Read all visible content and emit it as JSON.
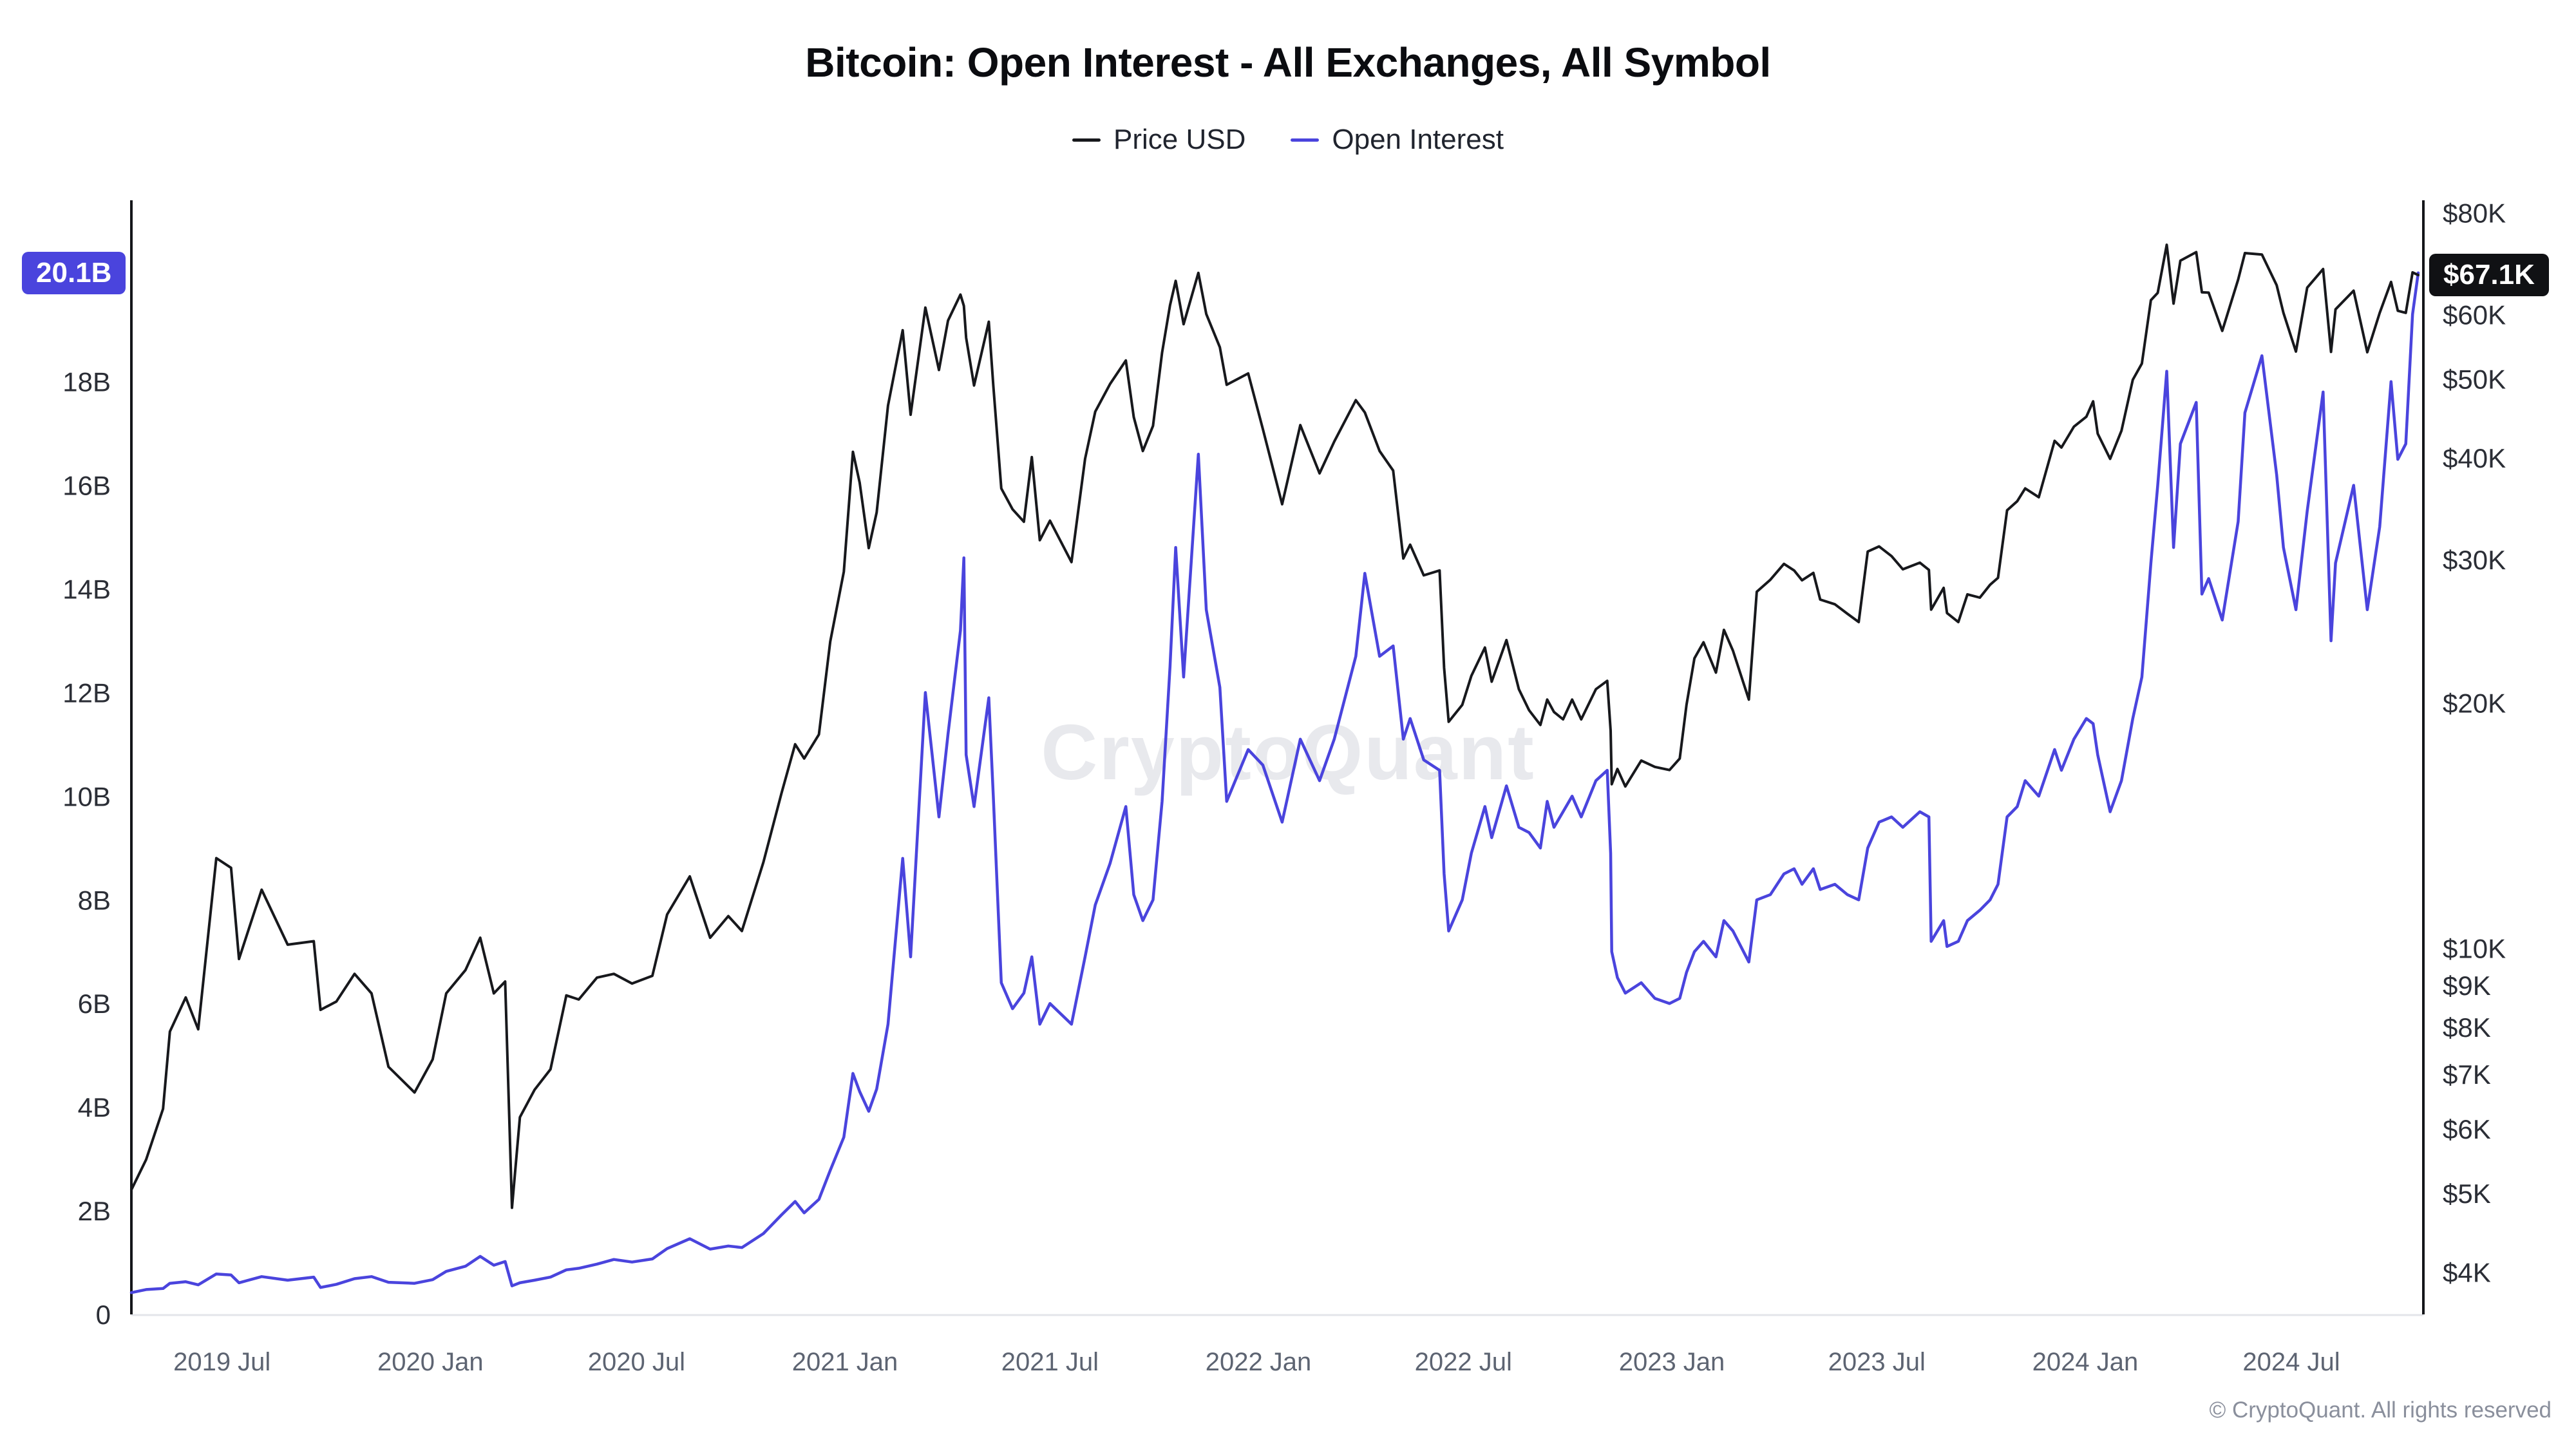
{
  "footer": {
    "copyright": "© CryptoQuant. All rights reserved"
  },
  "chart_data": {
    "type": "line",
    "x_type": "time",
    "title": "Bitcoin: Open Interest - All Exchanges, All Symbol",
    "watermark": "CryptoQuant",
    "legend_position": "top",
    "x_range": [
      "2019-04-12",
      "2024-10-21"
    ],
    "series": [
      {
        "name": "Price USD",
        "axis": "right",
        "color": "#17181c",
        "unit": "USD",
        "value_index": 1,
        "current": 67100,
        "current_label": "$67.1K"
      },
      {
        "name": "Open Interest",
        "axis": "left",
        "color": "#4a44dd",
        "unit": "billion USD",
        "value_index": 2,
        "current": 20.1,
        "current_label": "20.1B"
      }
    ],
    "left_axis": {
      "scale": "linear",
      "min": 0,
      "max": 21.5,
      "ticks": [
        0,
        2,
        4,
        6,
        8,
        10,
        12,
        14,
        16,
        18
      ],
      "tick_labels": [
        "0",
        "2B",
        "4B",
        "6B",
        "8B",
        "10B",
        "12B",
        "14B",
        "16B",
        "18B"
      ],
      "current_label": "20.1B"
    },
    "right_axis": {
      "scale": "log",
      "min": 3550,
      "max": 82900,
      "ticks": [
        4000,
        5000,
        6000,
        7000,
        8000,
        9000,
        10000,
        20000,
        30000,
        40000,
        50000,
        60000,
        80000
      ],
      "tick_labels": [
        "$4K",
        "$5K",
        "$6K",
        "$7K",
        "$8K",
        "$9K",
        "$10K",
        "$20K",
        "$30K",
        "$40K",
        "$50K",
        "$60K",
        "$80K"
      ],
      "current_label": "$67.1K"
    },
    "x_ticks": [
      {
        "date": "2019-07-01",
        "label": "2019 Jul"
      },
      {
        "date": "2020-01-01",
        "label": "2020 Jan"
      },
      {
        "date": "2020-07-01",
        "label": "2020 Jul"
      },
      {
        "date": "2021-01-01",
        "label": "2021 Jan"
      },
      {
        "date": "2021-07-01",
        "label": "2021 Jul"
      },
      {
        "date": "2022-01-01",
        "label": "2022 Jan"
      },
      {
        "date": "2022-07-01",
        "label": "2022 Jul"
      },
      {
        "date": "2023-01-01",
        "label": "2023 Jan"
      },
      {
        "date": "2023-07-01",
        "label": "2023 Jul"
      },
      {
        "date": "2024-01-01",
        "label": "2024 Jan"
      },
      {
        "date": "2024-07-01",
        "label": "2024 Jul"
      }
    ],
    "points": [
      [
        "2019-04-12",
        5050,
        0.42
      ],
      [
        "2019-04-25",
        5500,
        0.48
      ],
      [
        "2019-05-10",
        6350,
        0.5
      ],
      [
        "2019-05-16",
        7900,
        0.6
      ],
      [
        "2019-05-30",
        8700,
        0.63
      ],
      [
        "2019-06-10",
        7950,
        0.57
      ],
      [
        "2019-06-26",
        12900,
        0.78
      ],
      [
        "2019-07-09",
        12550,
        0.76
      ],
      [
        "2019-07-16",
        9700,
        0.61
      ],
      [
        "2019-08-05",
        11800,
        0.73
      ],
      [
        "2019-08-28",
        10100,
        0.66
      ],
      [
        "2019-09-20",
        10200,
        0.72
      ],
      [
        "2019-09-26",
        8400,
        0.52
      ],
      [
        "2019-10-10",
        8600,
        0.58
      ],
      [
        "2019-10-26",
        9300,
        0.69
      ],
      [
        "2019-11-10",
        8800,
        0.73
      ],
      [
        "2019-11-25",
        7150,
        0.62
      ],
      [
        "2019-12-18",
        6650,
        0.6
      ],
      [
        "2020-01-03",
        7300,
        0.67
      ],
      [
        "2020-01-15",
        8800,
        0.83
      ],
      [
        "2020-02-01",
        9400,
        0.93
      ],
      [
        "2020-02-14",
        10300,
        1.12
      ],
      [
        "2020-02-26",
        8800,
        0.95
      ],
      [
        "2020-03-07",
        9100,
        1.02
      ],
      [
        "2020-03-13",
        4800,
        0.55
      ],
      [
        "2020-03-20",
        6200,
        0.61
      ],
      [
        "2020-04-02",
        6700,
        0.66
      ],
      [
        "2020-04-16",
        7100,
        0.72
      ],
      [
        "2020-04-30",
        8750,
        0.86
      ],
      [
        "2020-05-11",
        8650,
        0.89
      ],
      [
        "2020-05-27",
        9200,
        0.97
      ],
      [
        "2020-06-11",
        9300,
        1.06
      ],
      [
        "2020-06-27",
        9050,
        1.01
      ],
      [
        "2020-07-15",
        9250,
        1.07
      ],
      [
        "2020-07-28",
        11000,
        1.27
      ],
      [
        "2020-08-17",
        12250,
        1.46
      ],
      [
        "2020-09-04",
        10300,
        1.26
      ],
      [
        "2020-09-20",
        10950,
        1.32
      ],
      [
        "2020-10-02",
        10500,
        1.29
      ],
      [
        "2020-10-21",
        12750,
        1.56
      ],
      [
        "2020-11-06",
        15500,
        1.92
      ],
      [
        "2020-11-18",
        17800,
        2.18
      ],
      [
        "2020-11-26",
        17100,
        1.96
      ],
      [
        "2020-12-09",
        18300,
        2.22
      ],
      [
        "2020-12-19",
        23800,
        2.78
      ],
      [
        "2020-12-31",
        29000,
        3.42
      ],
      [
        "2021-01-08",
        40700,
        4.65
      ],
      [
        "2021-01-14",
        37300,
        4.3
      ],
      [
        "2021-01-22",
        31000,
        3.92
      ],
      [
        "2021-01-29",
        34300,
        4.35
      ],
      [
        "2021-02-08",
        46400,
        5.6
      ],
      [
        "2021-02-21",
        57400,
        8.8
      ],
      [
        "2021-02-28",
        45200,
        6.9
      ],
      [
        "2021-03-13",
        61200,
        12.0
      ],
      [
        "2021-03-25",
        51300,
        9.6
      ],
      [
        "2021-04-02",
        59000,
        11.2
      ],
      [
        "2021-04-13",
        63500,
        13.2
      ],
      [
        "2021-04-16",
        61500,
        14.6
      ],
      [
        "2021-04-18",
        56200,
        10.8
      ],
      [
        "2021-04-25",
        49100,
        9.8
      ],
      [
        "2021-05-08",
        58800,
        11.9
      ],
      [
        "2021-05-12",
        49100,
        10.0
      ],
      [
        "2021-05-19",
        36700,
        6.4
      ],
      [
        "2021-05-29",
        34600,
        5.9
      ],
      [
        "2021-06-08",
        33400,
        6.2
      ],
      [
        "2021-06-15",
        40100,
        6.9
      ],
      [
        "2021-06-22",
        31700,
        5.6
      ],
      [
        "2021-07-01",
        33500,
        6.0
      ],
      [
        "2021-07-20",
        29800,
        5.6
      ],
      [
        "2021-08-01",
        39900,
        6.9
      ],
      [
        "2021-08-10",
        45600,
        7.9
      ],
      [
        "2021-08-23",
        49300,
        8.7
      ],
      [
        "2021-09-06",
        52700,
        9.8
      ],
      [
        "2021-09-13",
        44900,
        8.1
      ],
      [
        "2021-09-21",
        40800,
        7.6
      ],
      [
        "2021-09-30",
        43800,
        8.0
      ],
      [
        "2021-10-08",
        53900,
        9.9
      ],
      [
        "2021-10-15",
        61600,
        12.5
      ],
      [
        "2021-10-20",
        66000,
        14.8
      ],
      [
        "2021-10-27",
        58400,
        12.3
      ],
      [
        "2021-11-09",
        67500,
        16.6
      ],
      [
        "2021-11-16",
        60100,
        13.6
      ],
      [
        "2021-11-28",
        54700,
        12.1
      ],
      [
        "2021-12-04",
        49200,
        9.9
      ],
      [
        "2021-12-23",
        50800,
        10.9
      ],
      [
        "2022-01-05",
        43400,
        10.6
      ],
      [
        "2022-01-22",
        35100,
        9.5
      ],
      [
        "2022-02-07",
        43900,
        11.1
      ],
      [
        "2022-02-24",
        38300,
        10.3
      ],
      [
        "2022-03-09",
        41900,
        11.1
      ],
      [
        "2022-03-28",
        47100,
        12.7
      ],
      [
        "2022-04-05",
        45500,
        14.3
      ],
      [
        "2022-04-18",
        40800,
        12.7
      ],
      [
        "2022-04-30",
        38600,
        12.9
      ],
      [
        "2022-05-09",
        30100,
        11.1
      ],
      [
        "2022-05-15",
        31300,
        11.5
      ],
      [
        "2022-05-27",
        28700,
        10.7
      ],
      [
        "2022-06-10",
        29100,
        10.5
      ],
      [
        "2022-06-14",
        22100,
        8.5
      ],
      [
        "2022-06-18",
        18970,
        7.4
      ],
      [
        "2022-06-30",
        19900,
        8.0
      ],
      [
        "2022-07-08",
        21600,
        8.9
      ],
      [
        "2022-07-20",
        23400,
        9.8
      ],
      [
        "2022-07-26",
        21250,
        9.2
      ],
      [
        "2022-08-08",
        23900,
        10.2
      ],
      [
        "2022-08-19",
        20800,
        9.4
      ],
      [
        "2022-08-28",
        19600,
        9.3
      ],
      [
        "2022-09-07",
        18800,
        9.0
      ],
      [
        "2022-09-13",
        20200,
        9.9
      ],
      [
        "2022-09-19",
        19500,
        9.4
      ],
      [
        "2022-09-27",
        19100,
        9.7
      ],
      [
        "2022-10-05",
        20200,
        10.0
      ],
      [
        "2022-10-13",
        19100,
        9.6
      ],
      [
        "2022-10-26",
        20800,
        10.3
      ],
      [
        "2022-11-05",
        21300,
        10.5
      ],
      [
        "2022-11-08",
        18500,
        8.9
      ],
      [
        "2022-11-09",
        15900,
        7.0
      ],
      [
        "2022-11-14",
        16600,
        6.5
      ],
      [
        "2022-11-21",
        15800,
        6.2
      ],
      [
        "2022-12-05",
        17000,
        6.4
      ],
      [
        "2022-12-17",
        16700,
        6.1
      ],
      [
        "2022-12-30",
        16550,
        6.0
      ],
      [
        "2023-01-08",
        17100,
        6.1
      ],
      [
        "2023-01-14",
        19900,
        6.6
      ],
      [
        "2023-01-21",
        22700,
        7.0
      ],
      [
        "2023-01-29",
        23750,
        7.2
      ],
      [
        "2023-02-09",
        21800,
        6.9
      ],
      [
        "2023-02-16",
        24600,
        7.6
      ],
      [
        "2023-02-24",
        23200,
        7.4
      ],
      [
        "2023-03-10",
        20200,
        6.8
      ],
      [
        "2023-03-17",
        27400,
        8.0
      ],
      [
        "2023-03-29",
        28350,
        8.1
      ],
      [
        "2023-04-10",
        29650,
        8.5
      ],
      [
        "2023-04-19",
        29100,
        8.6
      ],
      [
        "2023-04-26",
        28300,
        8.3
      ],
      [
        "2023-05-06",
        28900,
        8.6
      ],
      [
        "2023-05-12",
        26800,
        8.2
      ],
      [
        "2023-05-25",
        26450,
        8.3
      ],
      [
        "2023-06-05",
        25750,
        8.1
      ],
      [
        "2023-06-15",
        25150,
        8.0
      ],
      [
        "2023-06-23",
        30700,
        9.0
      ],
      [
        "2023-07-03",
        31150,
        9.5
      ],
      [
        "2023-07-14",
        30300,
        9.6
      ],
      [
        "2023-07-24",
        29200,
        9.4
      ],
      [
        "2023-08-08",
        29750,
        9.7
      ],
      [
        "2023-08-16",
        29150,
        9.6
      ],
      [
        "2023-08-18",
        26050,
        7.2
      ],
      [
        "2023-08-29",
        27700,
        7.6
      ],
      [
        "2023-09-01",
        25800,
        7.1
      ],
      [
        "2023-09-11",
        25150,
        7.2
      ],
      [
        "2023-09-19",
        27200,
        7.6
      ],
      [
        "2023-09-30",
        26950,
        7.8
      ],
      [
        "2023-10-09",
        27950,
        8.0
      ],
      [
        "2023-10-16",
        28500,
        8.3
      ],
      [
        "2023-10-24",
        34500,
        9.6
      ],
      [
        "2023-11-02",
        35400,
        9.8
      ],
      [
        "2023-11-09",
        36700,
        10.3
      ],
      [
        "2023-11-21",
        35800,
        10.0
      ],
      [
        "2023-12-05",
        41990,
        10.9
      ],
      [
        "2023-12-11",
        41200,
        10.5
      ],
      [
        "2023-12-22",
        43700,
        11.1
      ],
      [
        "2024-01-02",
        44950,
        11.5
      ],
      [
        "2024-01-08",
        46950,
        11.4
      ],
      [
        "2024-01-12",
        42850,
        10.8
      ],
      [
        "2024-01-23",
        39900,
        9.7
      ],
      [
        "2024-02-02",
        43200,
        10.3
      ],
      [
        "2024-02-12",
        49900,
        11.5
      ],
      [
        "2024-02-20",
        52250,
        12.3
      ],
      [
        "2024-02-28",
        62500,
        14.5
      ],
      [
        "2024-03-05",
        63800,
        16.0
      ],
      [
        "2024-03-13",
        73100,
        18.2
      ],
      [
        "2024-03-19",
        61900,
        14.8
      ],
      [
        "2024-03-25",
        69900,
        16.8
      ],
      [
        "2024-04-08",
        71600,
        17.6
      ],
      [
        "2024-04-13",
        63900,
        13.9
      ],
      [
        "2024-04-19",
        63850,
        14.2
      ],
      [
        "2024-05-01",
        57300,
        13.4
      ],
      [
        "2024-05-15",
        66250,
        15.3
      ],
      [
        "2024-05-21",
        71400,
        17.4
      ],
      [
        "2024-06-05",
        71100,
        18.5
      ],
      [
        "2024-06-18",
        65200,
        16.2
      ],
      [
        "2024-06-24",
        60300,
        14.8
      ],
      [
        "2024-07-05",
        54050,
        13.6
      ],
      [
        "2024-07-15",
        64750,
        15.5
      ],
      [
        "2024-07-29",
        68250,
        17.8
      ],
      [
        "2024-08-05",
        54000,
        13.0
      ],
      [
        "2024-08-09",
        60900,
        14.5
      ],
      [
        "2024-08-25",
        64200,
        16.0
      ],
      [
        "2024-09-06",
        53950,
        13.6
      ],
      [
        "2024-09-17",
        60300,
        15.2
      ],
      [
        "2024-09-27",
        65800,
        18.0
      ],
      [
        "2024-10-03",
        60650,
        16.5
      ],
      [
        "2024-10-10",
        60300,
        16.8
      ],
      [
        "2024-10-16",
        67600,
        19.3
      ],
      [
        "2024-10-21",
        67100,
        20.1
      ]
    ]
  }
}
